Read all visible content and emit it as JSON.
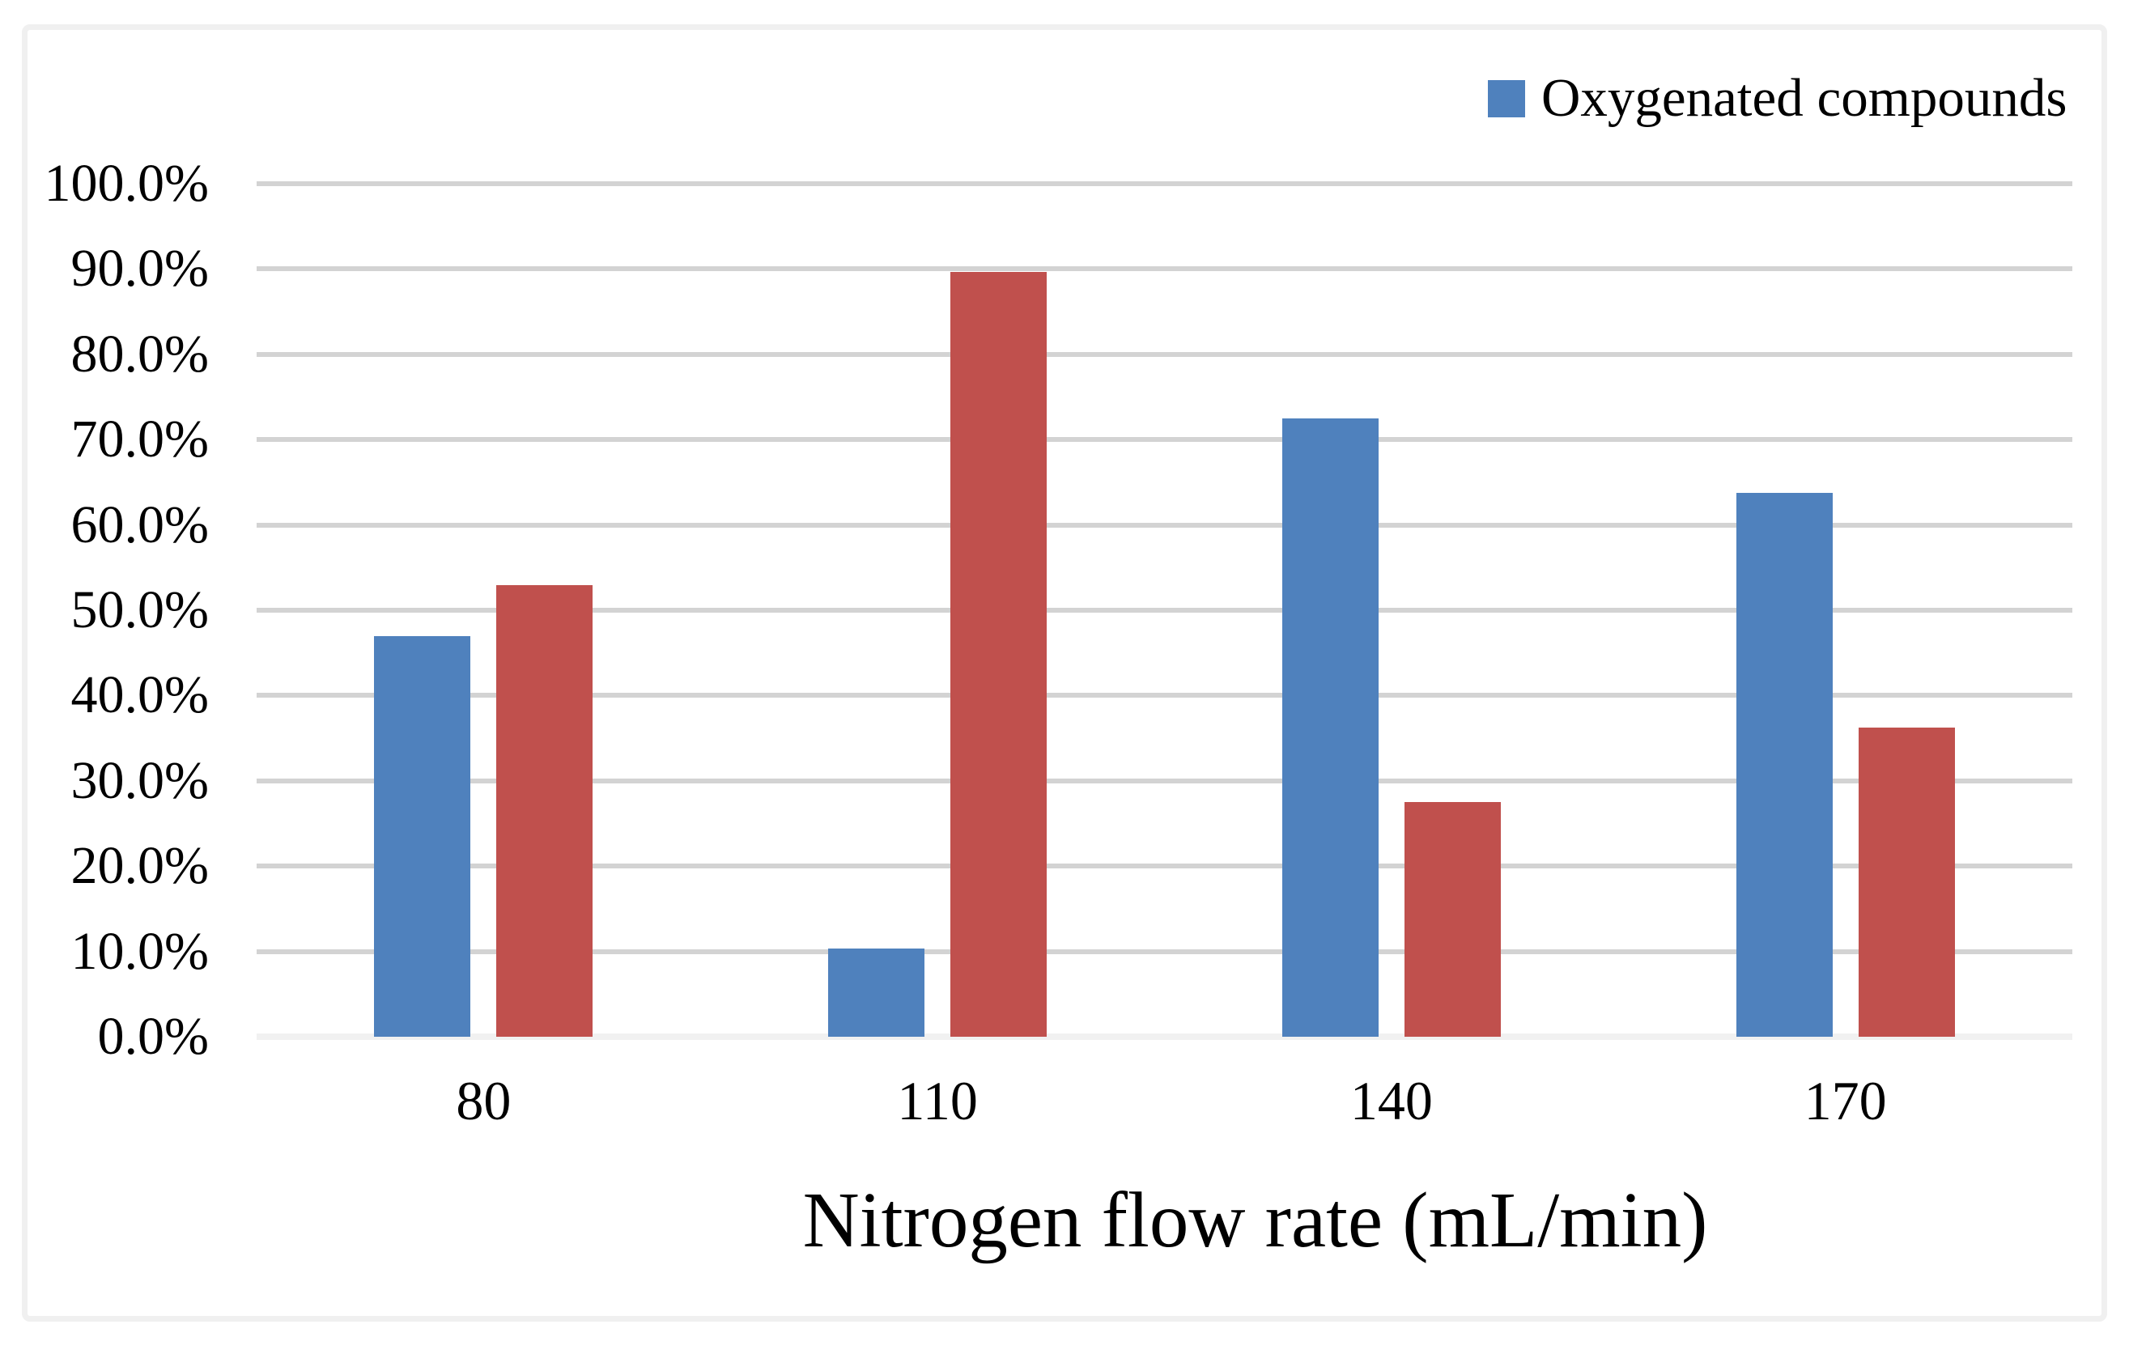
{
  "figure": {
    "background": "#ffffff",
    "border_color": "#f0f0f0"
  },
  "legend": {
    "position": "top-right",
    "items": [
      {
        "label": "Oxygenated compounds",
        "color": "#4F81BD"
      }
    ]
  },
  "chart_data": {
    "type": "bar",
    "title": "",
    "xlabel": "Nitrogen flow rate (mL/min)",
    "ylabel": "",
    "categories": [
      "80",
      "110",
      "140",
      "170"
    ],
    "series": [
      {
        "name": "Oxygenated compounds",
        "color": "#4F81BD",
        "values": [
          47.0,
          10.3,
          72.5,
          63.8
        ]
      },
      {
        "name": "",
        "color": "#C0504D",
        "values": [
          52.9,
          89.7,
          27.5,
          36.2
        ]
      }
    ],
    "ylim": [
      0,
      100
    ],
    "y_tick_step": 10,
    "y_ticks": [
      {
        "v": 0,
        "label": "0.0%"
      },
      {
        "v": 10,
        "label": "10.0%"
      },
      {
        "v": 20,
        "label": "20.0%"
      },
      {
        "v": 30,
        "label": "30.0%"
      },
      {
        "v": 40,
        "label": "40.0%"
      },
      {
        "v": 50,
        "label": "50.0%"
      },
      {
        "v": 60,
        "label": "60.0%"
      },
      {
        "v": 70,
        "label": "70.0%"
      },
      {
        "v": 80,
        "label": "80.0%"
      },
      {
        "v": 90,
        "label": "90.0%"
      },
      {
        "v": 100,
        "label": "100.0%"
      }
    ],
    "grid": "horizontal",
    "gridline_color": "#d3d3d3",
    "baseline_color": "#f1f1f1",
    "legend_position": "top-right"
  }
}
